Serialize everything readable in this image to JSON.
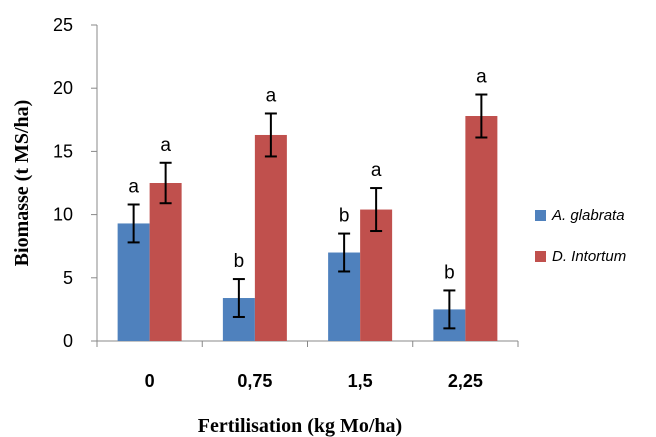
{
  "chart_data": {
    "type": "bar",
    "xlabel": "Fertilisation (kg Mo/ha)",
    "ylabel": "Biomasse (t MS/ha)",
    "ylim": [
      0,
      25
    ],
    "yticks": [
      "0",
      "5",
      "10",
      "15",
      "20",
      "25"
    ],
    "categories": [
      "0",
      "0,75",
      "1,5",
      "2,25"
    ],
    "series": [
      {
        "name": "A. glabrata",
        "color": "#4f81bd",
        "values": [
          9.3,
          3.4,
          7.0,
          2.5
        ],
        "errors": [
          1.5,
          1.5,
          1.5,
          1.5
        ],
        "labels": [
          "a",
          "b",
          "b",
          "b"
        ]
      },
      {
        "name": "D. Intortum",
        "color": "#c0504d",
        "values": [
          12.5,
          16.3,
          10.4,
          17.8
        ],
        "errors": [
          1.6,
          1.7,
          1.7,
          1.7
        ],
        "labels": [
          "a",
          "a",
          "a",
          "a"
        ]
      }
    ],
    "legend_position": "right",
    "grid": false
  }
}
